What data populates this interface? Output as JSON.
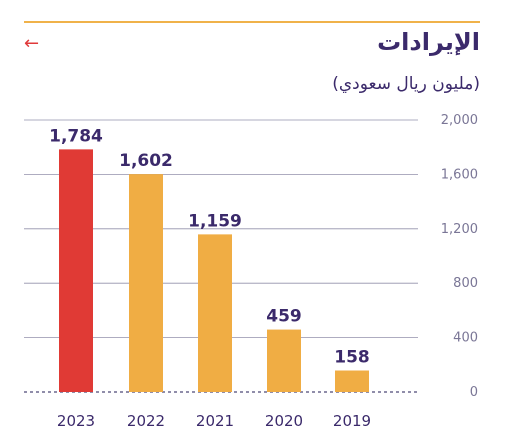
{
  "header": {
    "title": "الإيرادات",
    "subtitle": "(مليون ريال سعودي)",
    "back_icon": "arrow-left-icon"
  },
  "colors": {
    "highlight": "#e03a35",
    "bar": "#f0ad44",
    "value_label": "#3b2a6b",
    "gridline": "#3b3668",
    "tick_label": "#7a7696",
    "rule": "#f0b24a"
  },
  "chart_data": {
    "type": "bar",
    "title": "الإيرادات",
    "subtitle": "(مليون ريال سعودي)",
    "categories": [
      "2023",
      "2022",
      "2021",
      "2020",
      "2019"
    ],
    "values": [
      1784,
      1602,
      1159,
      459,
      158
    ],
    "value_labels": [
      "1,784",
      "1,602",
      "1,159",
      "459",
      "158"
    ],
    "highlight_index": 0,
    "yticks": [
      0,
      400,
      800,
      1200,
      1600,
      2000
    ],
    "ytick_labels": [
      "0",
      "400",
      "800",
      "1,200",
      "1,600",
      "2,000"
    ],
    "ylim": [
      0,
      2000
    ],
    "grid": true,
    "xlabel": "",
    "ylabel": ""
  }
}
